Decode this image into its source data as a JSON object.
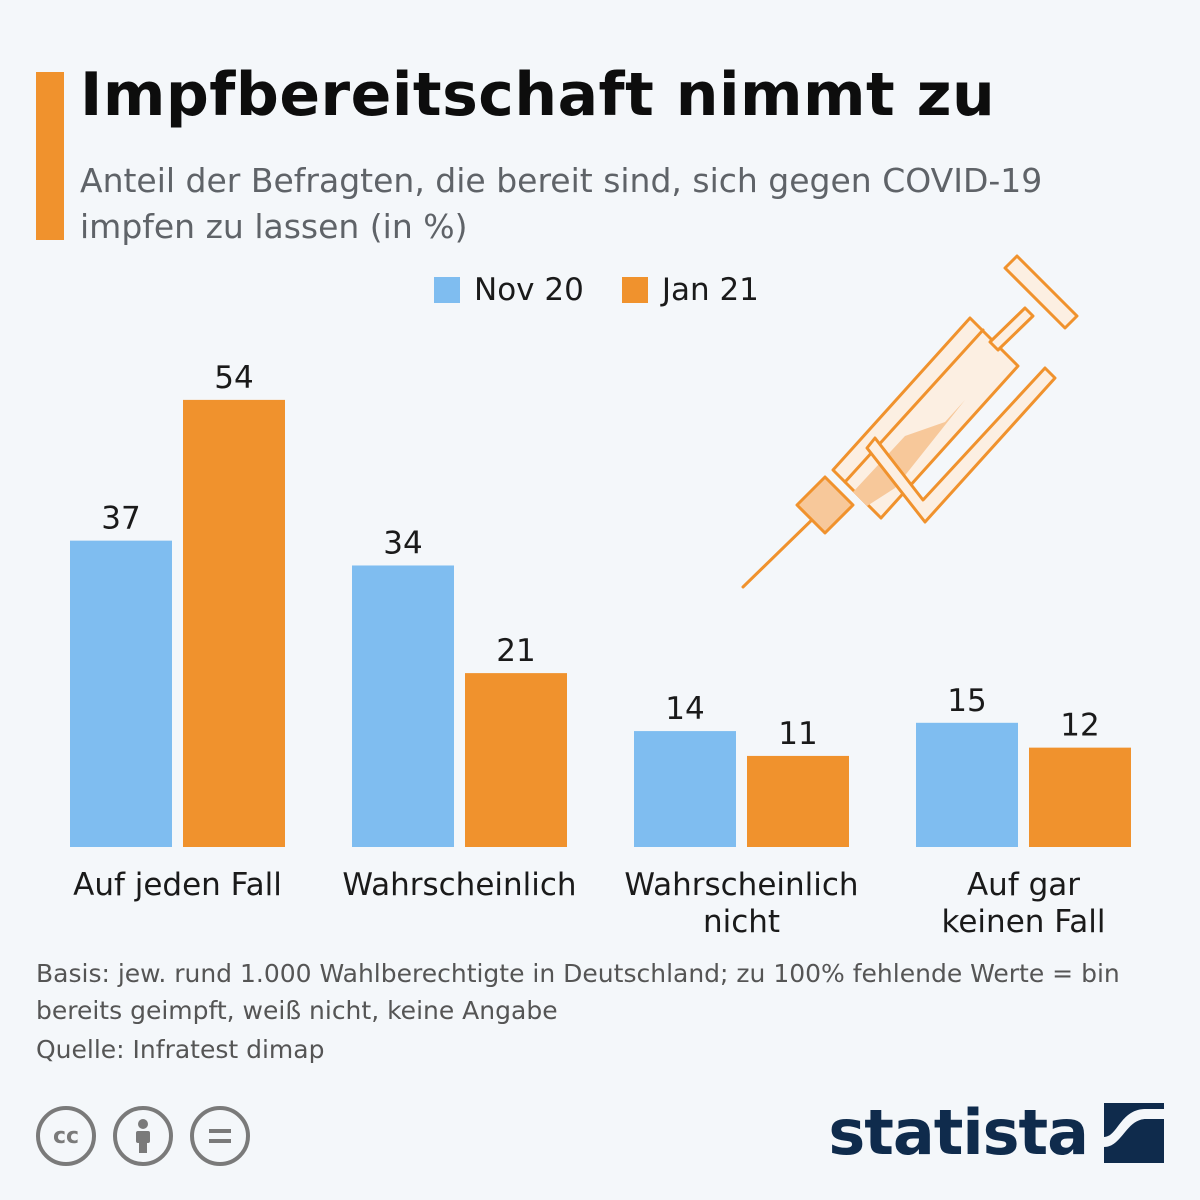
{
  "title": "Impfbereitschaft nimmt zu",
  "subtitle": "Anteil der Befragten, die bereit sind, sich gegen COVID-19 impfen zu lassen (in %)",
  "colors": {
    "accent": "#f0922d",
    "nov": "#7fbdf0",
    "jan": "#f0922d",
    "brand": "#0f2b4c"
  },
  "chart_data": {
    "type": "bar",
    "categories": [
      [
        "Auf jeden Fall"
      ],
      [
        "Wahrscheinlich"
      ],
      [
        "Wahrscheinlich",
        "nicht"
      ],
      [
        "Auf gar",
        "keinen Fall"
      ]
    ],
    "series": [
      {
        "name": "Nov 20",
        "values": [
          37,
          34,
          14,
          15
        ]
      },
      {
        "name": "Jan 21",
        "values": [
          54,
          21,
          11,
          12
        ]
      }
    ],
    "ylim": [
      0,
      54
    ],
    "legend": "top-center",
    "grid": false
  },
  "legend": {
    "nov": "Nov 20",
    "jan": "Jan 21"
  },
  "footnote": "Basis: jew. rund 1.000 Wahlberechtigte in Deutschland; zu 100% fehlende Werte = bin bereits geimpft, weiß nicht, keine Angabe",
  "source": "Quelle: Infratest dimap",
  "license": {
    "cc": "cc"
  },
  "brand": {
    "name": "statista",
    "logo_icon": "statista-wave-icon"
  },
  "illustration_icon": "syringe-icon"
}
